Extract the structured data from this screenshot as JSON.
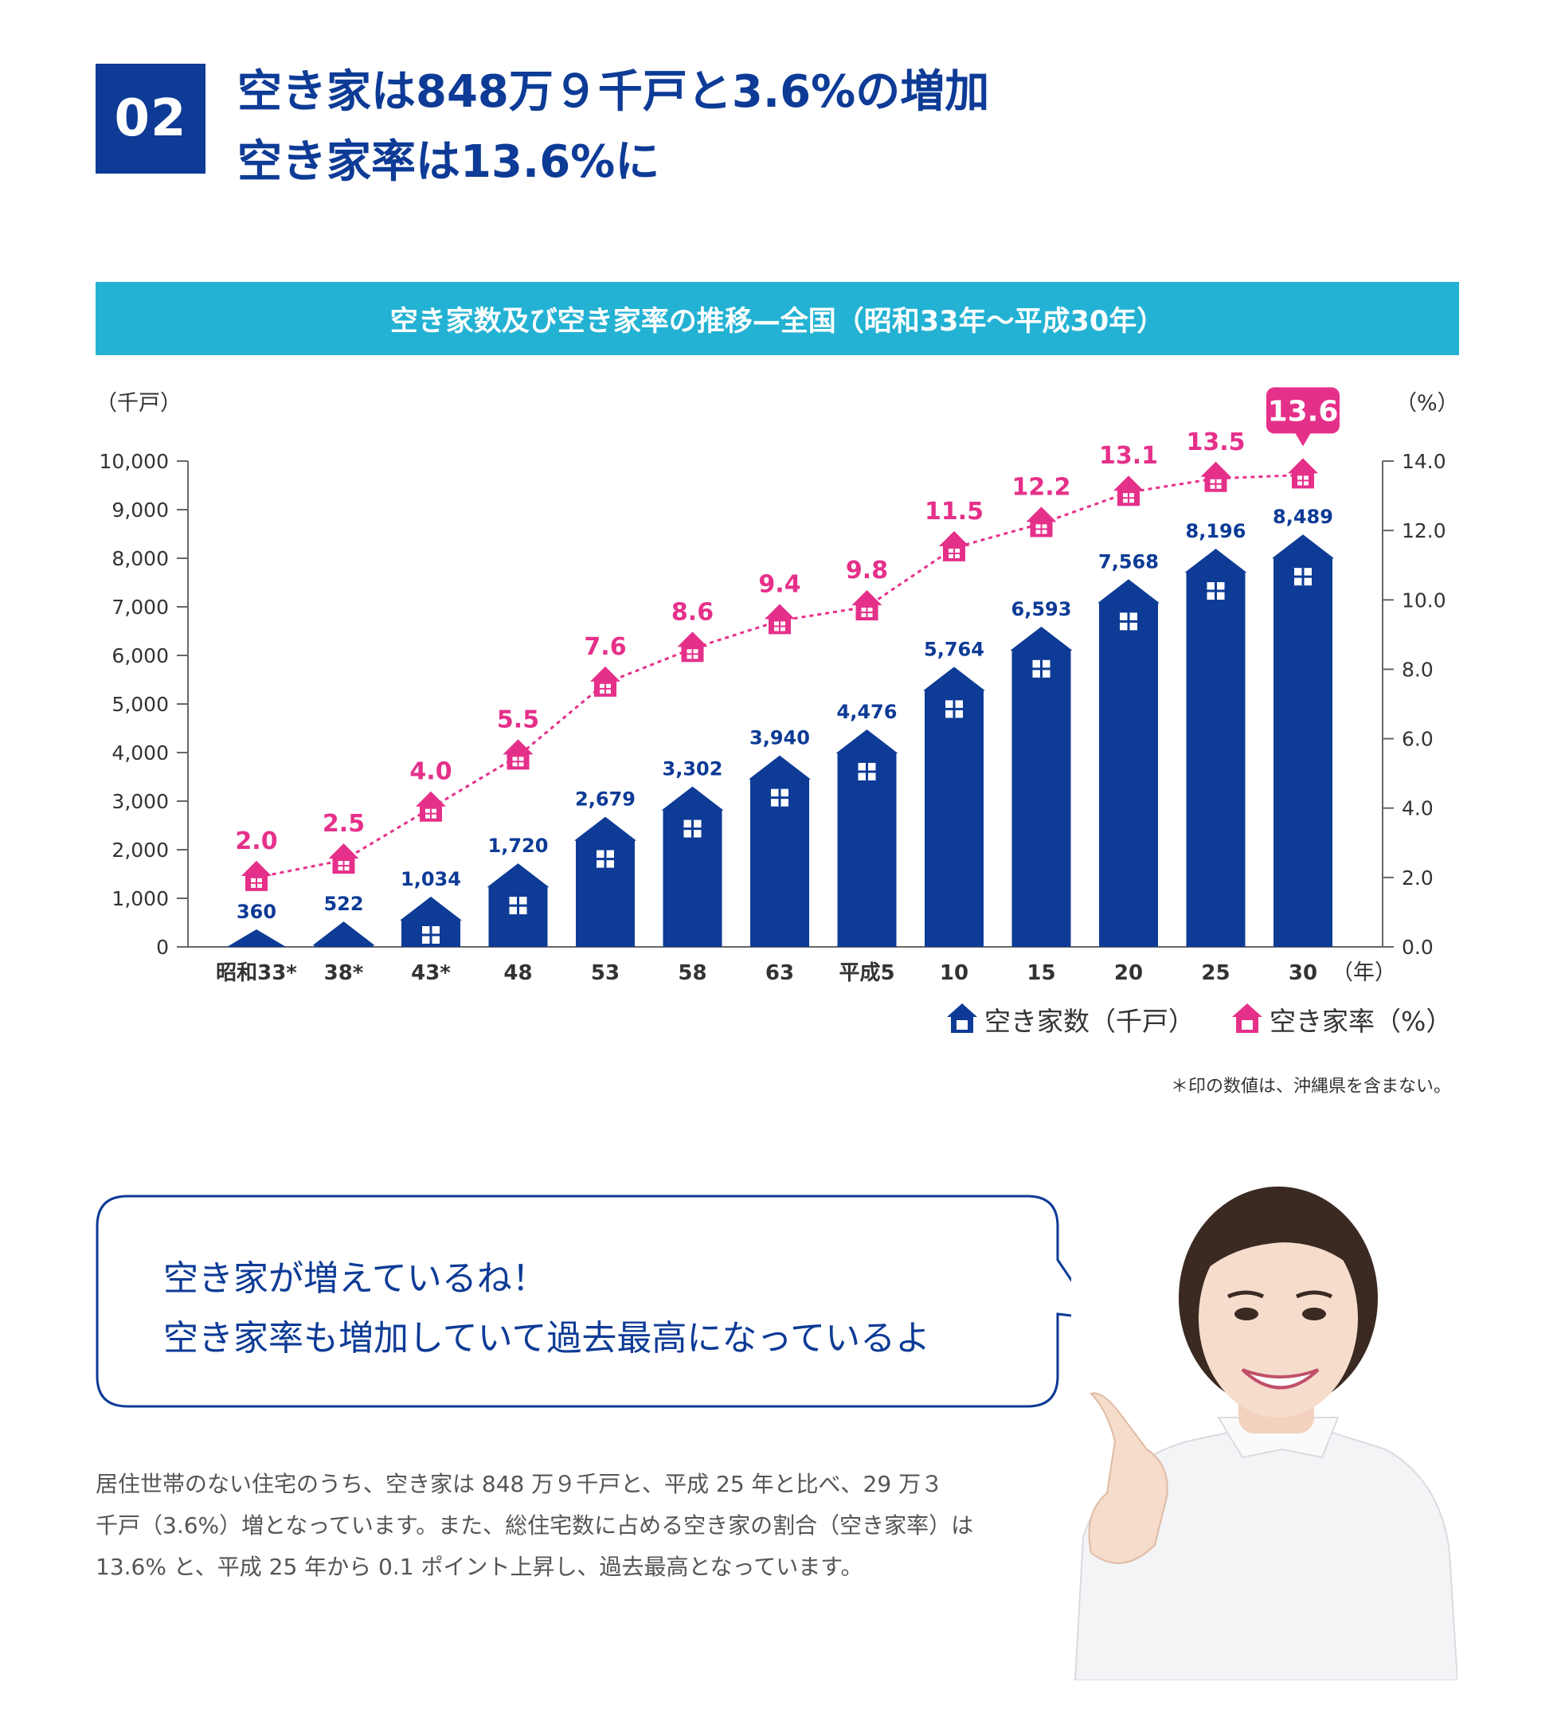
{
  "header": {
    "badge": "02",
    "line1": "空き家は848万９千戸と3.6%の増加",
    "line2": "空き家率は13.6%に"
  },
  "chart_title": "空き家数及び空き家率の推移—全国（昭和33年～平成30年）",
  "chart_data": {
    "type": "bar",
    "categories": [
      "昭和33*",
      "38*",
      "43*",
      "48",
      "53",
      "58",
      "63",
      "平成5",
      "10",
      "15",
      "20",
      "25",
      "30"
    ],
    "series": [
      {
        "name": "空き家数（千戸）",
        "type": "bar",
        "axis": "left",
        "values": [
          360,
          522,
          1034,
          1720,
          2679,
          3302,
          3940,
          4476,
          5764,
          6593,
          7568,
          8196,
          8489
        ],
        "labels": [
          "360",
          "522",
          "1,034",
          "1,720",
          "2,679",
          "3,302",
          "3,940",
          "4,476",
          "5,764",
          "6,593",
          "7,568",
          "8,196",
          "8,489"
        ]
      },
      {
        "name": "空き家率（%）",
        "type": "line",
        "axis": "right",
        "values": [
          2.0,
          2.5,
          4.0,
          5.5,
          7.6,
          8.6,
          9.4,
          9.8,
          11.5,
          12.2,
          13.1,
          13.5,
          13.6
        ],
        "labels": [
          "2.0",
          "2.5",
          "4.0",
          "5.5",
          "7.6",
          "8.6",
          "9.4",
          "9.8",
          "11.5",
          "12.2",
          "13.1",
          "13.5",
          "13.6"
        ]
      }
    ],
    "ylabel": "（千戸）",
    "y2label": "（%）",
    "xunit": "（年）",
    "ylim": [
      0,
      10000
    ],
    "y2lim": [
      0,
      14
    ],
    "yticks": [
      "0",
      "1,000",
      "2,000",
      "3,000",
      "4,000",
      "5,000",
      "6,000",
      "7,000",
      "8,000",
      "9,000",
      "10,000"
    ],
    "y2ticks": [
      "0.0",
      "2.0",
      "4.0",
      "6.0",
      "8.0",
      "10.0",
      "12.0",
      "14.0"
    ],
    "legend_position": "bottom-right",
    "colors": {
      "bar": "#0d3b96",
      "line": "#e5308a"
    }
  },
  "footnote": "＊印の数値は、沖縄県を含まない。",
  "bubble": {
    "line1": "空き家が増えているね！",
    "line2": "空き家率も増加していて過去最高になっているよ"
  },
  "body": {
    "line1": "居住世帯のない住宅のうち、空き家は 848 万９千戸と、平成 25 年と比べ、29 万３",
    "line2": "千戸（3.6%）増となっています。また、総住宅数に占める空き家の割合（空き家率）は",
    "line3": "13.6% と、平成 25 年から 0.1 ポイント上昇し、過去最高となっています。"
  }
}
